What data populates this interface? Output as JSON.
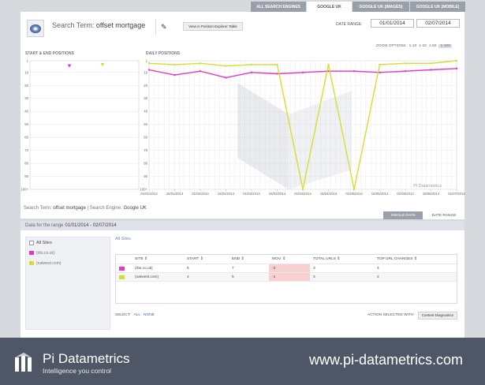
{
  "tabs": [
    {
      "label": "ALL SEARCH ENGINES",
      "active": false
    },
    {
      "label": "GOOGLE UK",
      "active": true
    },
    {
      "label": "GOOGLE UK (IMAGES)",
      "active": false
    },
    {
      "label": "GOOGLE UK (MOBILE)",
      "active": false
    }
  ],
  "header": {
    "search_term_prefix": "Search Term:",
    "search_term": "offset mortgage",
    "position_explorer_label": "View in Position Explorer Table",
    "date_range_label": "DATE RANGE:",
    "date_from": "01/01/2014",
    "date_to": "02/07/2014"
  },
  "zoom": {
    "label": "ZOOM OPTIONS:",
    "options": [
      "1-10",
      "1-20",
      "1-50",
      "1-100"
    ],
    "selected": "1-100"
  },
  "charts": {
    "left_title": "START & END POSITIONS",
    "right_title": "DAILY POSITIONS",
    "y_ticks": [
      "1",
      "10",
      "20",
      "30",
      "40",
      "50",
      "60",
      "70",
      "80",
      "90",
      "100+"
    ],
    "x_ticks": [
      "01/01/2014",
      "16/01/2014",
      "01/02/2014",
      "16/02/2014",
      "01/03/2014",
      "16/03/2014",
      "01/04/2014",
      "16/04/2014",
      "01/05/2014",
      "16/05/2014",
      "01/06/2014",
      "16/06/2014",
      "01/07/2014"
    ],
    "watermark": "Pi Datametrics"
  },
  "chart_data": {
    "type": "line",
    "x": [
      "01/01/2014",
      "16/01/2014",
      "01/02/2014",
      "16/02/2014",
      "01/03/2014",
      "16/03/2014",
      "01/04/2014",
      "16/04/2014",
      "01/05/2014",
      "16/05/2014",
      "01/06/2014",
      "16/06/2014",
      "01/07/2014"
    ],
    "ylim": [
      1,
      100
    ],
    "y_inverted": true,
    "series": [
      {
        "color": "#e834c8",
        "values": [
          8,
          12,
          9,
          14,
          10,
          11,
          10,
          9,
          9,
          10,
          9,
          8,
          7
        ]
      },
      {
        "color": "#d8dc32",
        "values": [
          3,
          4,
          3,
          5,
          4,
          4,
          100,
          4,
          100,
          4,
          3,
          3,
          1
        ]
      }
    ],
    "start_end": [
      {
        "color": "#e834c8",
        "start": 5,
        "end": 7
      },
      {
        "color": "#d8dc32",
        "start": 4,
        "end": 5
      }
    ]
  },
  "meta": {
    "search_term_label": "Search Term:",
    "search_term": "offset mortgage",
    "engine_label": "| Search Engine:",
    "engine": "Google UK"
  },
  "range_tabs": [
    {
      "label": "SINGLE DATE",
      "active": false
    },
    {
      "label": "DATE RANGE",
      "active": true
    }
  ],
  "range_bar": {
    "label": "Data for the range",
    "value": "01/01/2014 - 02/07/2014"
  },
  "sites": {
    "all_label": "All Sites",
    "items": [
      {
        "label": "(rbs.co.uk)",
        "color": "#e834c8"
      },
      {
        "label": "(natwest.com)",
        "color": "#d8dc32"
      }
    ]
  },
  "table": {
    "title": "All Sites",
    "headers": [
      "SITE",
      "START",
      "END",
      "MOV.",
      "TOTAL URLS",
      "TOP URL CHANGES"
    ],
    "rows": [
      {
        "color": "#e834c8",
        "site": "(rbs.co.uk)",
        "start": "5",
        "end": "7",
        "mov": "-2",
        "urls": "3",
        "changes": "4"
      },
      {
        "color": "#d8dc32",
        "site": "(natwest.com)",
        "start": "4",
        "end": "5",
        "mov": "-1",
        "urls": "3",
        "changes": "2"
      }
    ]
  },
  "select_bar": {
    "label": "SELECT:",
    "all": "ALL",
    "none": "NONE",
    "action_label": "ACTION SELECTED WITH:",
    "action_button": "Content Diagnostics"
  },
  "footer": {
    "brand": "Pi Datametrics",
    "tagline": "Intelligence you control",
    "url": "www.pi-datametrics.com"
  }
}
